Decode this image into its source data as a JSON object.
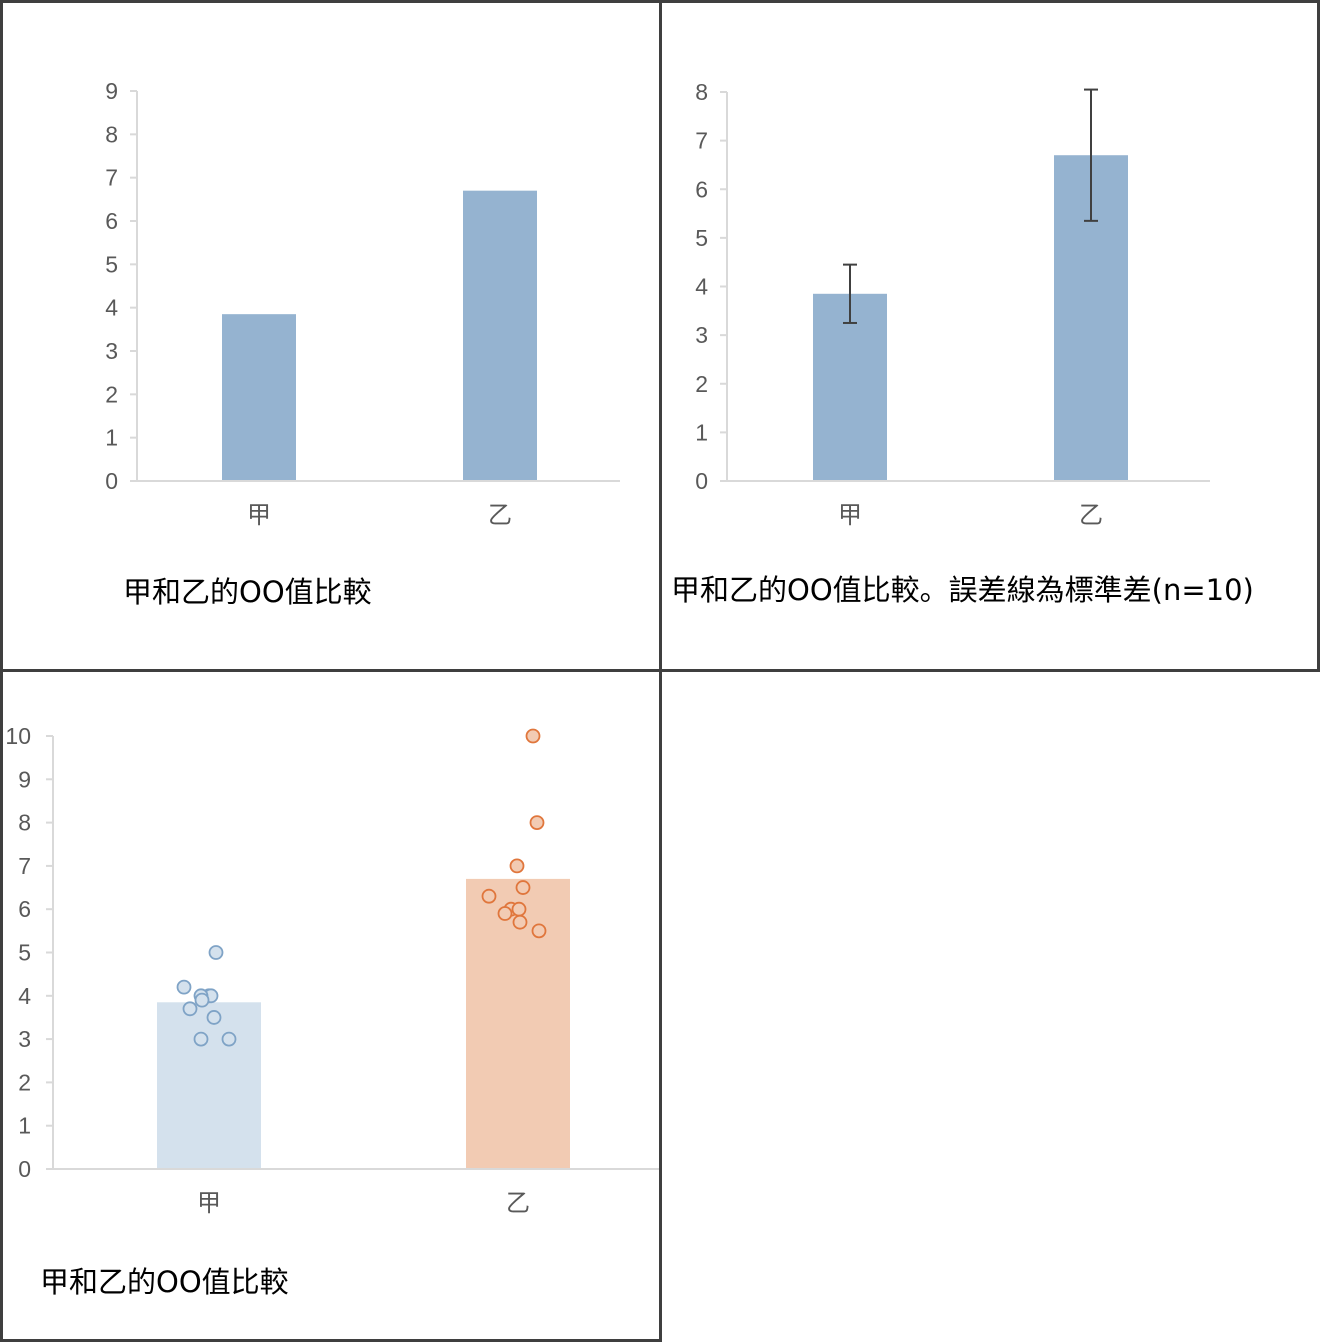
{
  "chart_data": [
    {
      "type": "bar",
      "categories": [
        "甲",
        "乙"
      ],
      "values": [
        3.85,
        6.7
      ],
      "ylim": [
        0,
        9
      ],
      "yticks": [
        0,
        1,
        2,
        3,
        4,
        5,
        6,
        7,
        8,
        9
      ],
      "grid": false,
      "bar_color": "#95b3d0",
      "caption": "甲和乙的OO值比較"
    },
    {
      "type": "bar",
      "categories": [
        "甲",
        "乙"
      ],
      "values": [
        3.85,
        6.7
      ],
      "error": [
        0.6,
        1.35
      ],
      "ylim": [
        0,
        8
      ],
      "yticks": [
        0,
        1,
        2,
        3,
        4,
        5,
        6,
        7,
        8
      ],
      "grid": false,
      "bar_color": "#95b3d0",
      "caption": "甲和乙的OO值比較。誤差線為標準差(n=10)"
    },
    {
      "type": "bar",
      "categories": [
        "甲",
        "乙"
      ],
      "values": [
        3.85,
        6.7
      ],
      "bar_colors": [
        "#d4e1ed",
        "#f2cbb3"
      ],
      "point_fill": [
        "#d4e1ed",
        "#f2cbb3"
      ],
      "point_stroke": [
        "#7fa3c6",
        "#e0763c"
      ],
      "points": [
        [
          5.0,
          4.2,
          4.0,
          4.0,
          4.0,
          3.9,
          3.7,
          3.5,
          3.0,
          3.0
        ],
        [
          10.0,
          8.0,
          7.0,
          6.5,
          6.3,
          6.0,
          6.0,
          5.9,
          5.7,
          5.5
        ]
      ],
      "ylim": [
        0,
        10
      ],
      "yticks": [
        0,
        1,
        2,
        3,
        4,
        5,
        6,
        7,
        8,
        9,
        10
      ],
      "grid": false,
      "caption": "甲和乙的OO值比較"
    }
  ]
}
